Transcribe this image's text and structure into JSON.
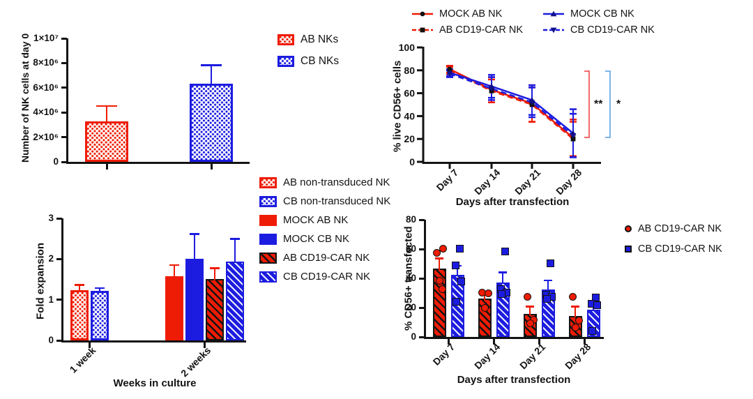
{
  "chart_data": [
    {
      "id": "nk-cells-day0",
      "type": "bar",
      "title": "",
      "ylabel": "Number of NK cells at day 0",
      "xlabel": "",
      "ylim": [
        0,
        10000000
      ],
      "yticks": [
        {
          "v": 0,
          "label": "0"
        },
        {
          "v": 2000000,
          "label": "2×10⁶"
        },
        {
          "v": 4000000,
          "label": "4×10⁶"
        },
        {
          "v": 6000000,
          "label": "6×10⁶"
        },
        {
          "v": 8000000,
          "label": "8×10⁶"
        },
        {
          "v": 10000000,
          "label": "1×10⁷"
        }
      ],
      "bars": [
        {
          "name": "AB NKs",
          "value": 3300000,
          "error": 1200000,
          "color": "#ee1c04",
          "pattern": "checker"
        },
        {
          "name": "CB NKs",
          "value": 6350000,
          "error": 1450000,
          "color": "#1c1ce0",
          "pattern": "checker"
        }
      ],
      "legend": [
        {
          "label": "AB NKs",
          "color": "#ee1c04",
          "pattern": "checker"
        },
        {
          "label": "CB NKs",
          "color": "#1c1ce0",
          "pattern": "checker"
        }
      ]
    },
    {
      "id": "live-cd56-cells",
      "type": "line",
      "title": "",
      "ylabel": "% live CD56+ cells",
      "xlabel": "Days after transfection",
      "ylim": [
        0,
        100
      ],
      "yticks": [
        0,
        20,
        40,
        60,
        80,
        100
      ],
      "categories": [
        "Day 7",
        "Day 14",
        "Day 21",
        "Day 28"
      ],
      "series": [
        {
          "name": "MOCK AB NK",
          "color": "#ee1c04",
          "dash": "solid",
          "marker": "circle",
          "marker_color": "#101010",
          "values": [
            81,
            63,
            51,
            21
          ],
          "errors": [
            3,
            11,
            16,
            16
          ]
        },
        {
          "name": "AB CD19-CAR NK",
          "color": "#ee1c04",
          "dash": "dashed",
          "marker": "square",
          "marker_color": "#101010",
          "values": [
            80,
            62,
            50,
            20
          ],
          "errors": [
            3,
            10,
            15,
            15
          ]
        },
        {
          "name": "MOCK CB NK",
          "color": "#1c1ce0",
          "dash": "solid",
          "marker": "triangle-up",
          "marker_color": "#10108c",
          "values": [
            78,
            66,
            54,
            25
          ],
          "errors": [
            3,
            10,
            13,
            21
          ]
        },
        {
          "name": "CB CD19-CAR NK",
          "color": "#1c1ce0",
          "dash": "dashed",
          "marker": "triangle-down",
          "marker_color": "#10108c",
          "values": [
            77,
            64,
            52,
            23
          ],
          "errors": [
            3,
            10,
            13,
            19
          ]
        }
      ],
      "significance": [
        {
          "label": "**",
          "bracket_color": "#f4696b"
        },
        {
          "label": "*",
          "bracket_color": "#7cb4e8"
        }
      ],
      "legend_order": [
        "MOCK AB NK",
        "AB CD19-CAR NK",
        "MOCK CB NK",
        "CB CD19-CAR NK"
      ]
    },
    {
      "id": "fold-expansion",
      "type": "grouped-bar",
      "title": "",
      "ylabel": "Fold expansion",
      "xlabel": "Weeks in culture",
      "ylim": [
        0,
        3
      ],
      "yticks": [
        {
          "v": 0,
          "label": "0"
        },
        {
          "v": 1,
          "label": "1"
        },
        {
          "v": 2,
          "label": "2"
        },
        {
          "v": 3,
          "label": "3"
        }
      ],
      "groups": [
        {
          "label": "1 week",
          "bars": [
            {
              "series": "AB non-transduced NK",
              "value": 1.23,
              "error": 0.13,
              "color": "#ee1c04",
              "pattern": "checker"
            },
            {
              "series": "CB non-transduced NK",
              "value": 1.22,
              "error": 0.06,
              "color": "#1c1ce0",
              "pattern": "checker"
            }
          ]
        },
        {
          "label": "2 weeks",
          "bars": [
            {
              "series": "MOCK AB NK",
              "value": 1.58,
              "error": 0.27,
              "color": "#ee1c04",
              "pattern": "solid"
            },
            {
              "series": "MOCK CB NK",
              "value": 2.01,
              "error": 0.6,
              "color": "#1c1ce0",
              "pattern": "solid"
            },
            {
              "series": "AB CD19-CAR NK",
              "value": 1.51,
              "error": 0.26,
              "color": "#ee1c04",
              "pattern": "hatch-black"
            },
            {
              "series": "CB CD19-CAR NK",
              "value": 1.94,
              "error": 0.55,
              "color": "#1c1ce0",
              "pattern": "hatch-white"
            }
          ]
        }
      ],
      "legend": [
        {
          "label": "AB non-transduced NK",
          "color": "#ee1c04",
          "pattern": "checker"
        },
        {
          "label": "CB non-transduced NK",
          "color": "#1c1ce0",
          "pattern": "checker"
        },
        {
          "label": "MOCK AB NK",
          "color": "#ee1c04",
          "pattern": "solid"
        },
        {
          "label": "MOCK CB NK",
          "color": "#1c1ce0",
          "pattern": "solid"
        },
        {
          "label": "AB CD19-CAR NK",
          "color": "#ee1c04",
          "pattern": "hatch-black"
        },
        {
          "label": "CB CD19-CAR NK",
          "color": "#1c1ce0",
          "pattern": "hatch-white"
        }
      ]
    },
    {
      "id": "cd56-transfected",
      "type": "grouped-bar-scatter",
      "title": "",
      "ylabel": "% CD56+ transfected",
      "xlabel": "Days after transfection",
      "ylim": [
        0,
        80
      ],
      "yticks": [
        {
          "v": 0,
          "label": "0"
        },
        {
          "v": 20,
          "label": "20"
        },
        {
          "v": 40,
          "label": "40"
        },
        {
          "v": 60,
          "label": "60"
        },
        {
          "v": 80,
          "label": "80"
        }
      ],
      "categories": [
        "Day 7",
        "Day 14",
        "Day 21",
        "Day 28"
      ],
      "series": [
        {
          "name": "AB CD19-CAR NK",
          "color": "#ee1c04",
          "pattern": "hatch-black",
          "marker": "circle",
          "values": [
            46.5,
            26,
            15.5,
            14.5
          ],
          "errors": [
            7,
            4,
            5,
            6
          ],
          "points": [
            [
              57,
              60,
              38,
              32
            ],
            [
              30,
              29.5,
              19.5
            ],
            [
              27,
              11,
              9
            ],
            [
              27,
              10.5,
              6
            ]
          ]
        },
        {
          "name": "CB CD19-CAR NK",
          "color": "#1c1ce0",
          "pattern": "hatch-white",
          "marker": "square",
          "values": [
            42.5,
            37,
            32.5,
            18.5
          ],
          "errors": [
            6,
            7,
            6,
            4
          ],
          "points": [
            [
              60,
              48.5,
              37.5,
              23.5
            ],
            [
              58,
              32,
              30,
              29
            ],
            [
              50,
              28.5,
              27,
              25.5
            ],
            [
              26.5,
              22,
              21,
              3.5
            ]
          ]
        }
      ],
      "legend": [
        {
          "label": "AB CD19-CAR NK",
          "marker": "circle",
          "color": "#ee1c04"
        },
        {
          "label": "CB CD19-CAR NK",
          "marker": "square",
          "color": "#1c1ce0"
        }
      ]
    }
  ],
  "colors": {
    "red": "#ee1c04",
    "blue": "#1c1ce0",
    "axis": "#131313",
    "sig_bracket_red": "#f4696b",
    "sig_bracket_blue": "#7cb4e8"
  }
}
